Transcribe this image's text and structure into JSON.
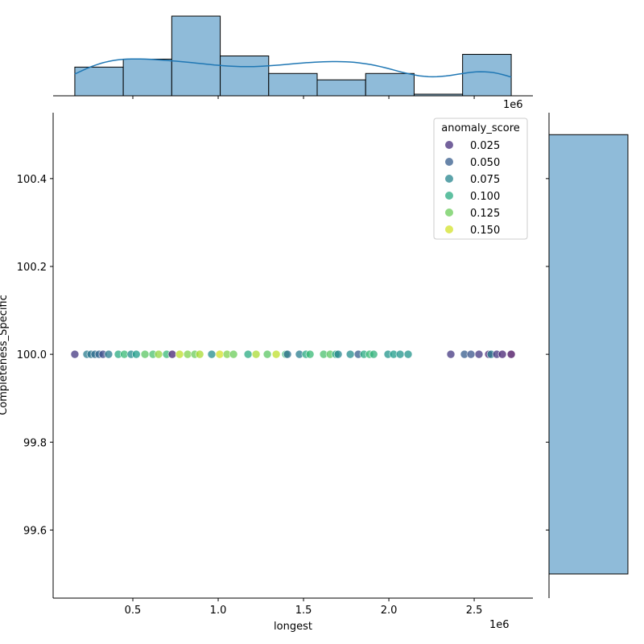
{
  "chart_data": {
    "type": "scatter",
    "subtype": "jointplot",
    "xlabel": "longest",
    "ylabel": "Completeness_Specific",
    "x_offset_label": "1e6",
    "xlim": [
      33000.0,
      2844000.0
    ],
    "ylim": [
      99.445,
      100.55
    ],
    "xticks": [
      0.5,
      1.0,
      1.5,
      2.0,
      2.5
    ],
    "xtick_labels": [
      "0.5",
      "1.0",
      "1.5",
      "2.0",
      "2.5"
    ],
    "yticks": [
      99.6,
      99.8,
      100.0,
      100.2,
      100.4
    ],
    "ytick_labels": [
      "99.6",
      "99.8",
      "100.0",
      "100.2",
      "100.4"
    ],
    "legend": {
      "title": "anomaly_score",
      "placement": "upper right",
      "entries": [
        "0.025",
        "0.050",
        "0.075",
        "0.100",
        "0.125",
        "0.150"
      ],
      "values": [
        0.025,
        0.05,
        0.075,
        0.1,
        0.125,
        0.15
      ]
    },
    "hue_range": [
      0.005,
      0.16
    ],
    "colormap": "viridis",
    "points": [
      [
        160000,
        0.03
      ],
      [
        231000,
        0.07
      ],
      [
        255000,
        0.065
      ],
      [
        278000,
        0.06
      ],
      [
        302000,
        0.055
      ],
      [
        325000,
        0.04
      ],
      [
        358000,
        0.07
      ],
      [
        415000,
        0.1
      ],
      [
        450000,
        0.11
      ],
      [
        490000,
        0.08
      ],
      [
        520000,
        0.09
      ],
      [
        571000,
        0.12
      ],
      [
        618000,
        0.115
      ],
      [
        651000,
        0.135
      ],
      [
        698000,
        0.11
      ],
      [
        731000,
        0.02
      ],
      [
        774000,
        0.145
      ],
      [
        821000,
        0.13
      ],
      [
        863000,
        0.125
      ],
      [
        892000,
        0.14
      ],
      [
        962000,
        0.08
      ],
      [
        1009000,
        0.15
      ],
      [
        1052000,
        0.13
      ],
      [
        1090000,
        0.125
      ],
      [
        1175000,
        0.1
      ],
      [
        1222000,
        0.14
      ],
      [
        1288000,
        0.12
      ],
      [
        1340000,
        0.145
      ],
      [
        1396000,
        0.11
      ],
      [
        1406000,
        0.06
      ],
      [
        1476000,
        0.07
      ],
      [
        1514000,
        0.1
      ],
      [
        1538000,
        0.11
      ],
      [
        1618000,
        0.115
      ],
      [
        1656000,
        0.12
      ],
      [
        1689000,
        0.1
      ],
      [
        1703000,
        0.075
      ],
      [
        1774000,
        0.08
      ],
      [
        1821000,
        0.05
      ],
      [
        1854000,
        0.1
      ],
      [
        1887000,
        0.11
      ],
      [
        1911000,
        0.105
      ],
      [
        1995000,
        0.085
      ],
      [
        2028000,
        0.09
      ],
      [
        2066000,
        0.085
      ],
      [
        2113000,
        0.085
      ],
      [
        2363000,
        0.03
      ],
      [
        2443000,
        0.05
      ],
      [
        2481000,
        0.045
      ],
      [
        2528000,
        0.03
      ],
      [
        2585000,
        0.02
      ],
      [
        2599000,
        0.07
      ],
      [
        2632000,
        0.03
      ],
      [
        2665000,
        0.02
      ],
      [
        2717000,
        0.01
      ]
    ],
    "x_histogram": {
      "bin_edges": [
        160000,
        444000,
        728000,
        1012000,
        1296000,
        1580000,
        1864000,
        2148000,
        2432000,
        2717000
      ],
      "counts": [
        18,
        23,
        50,
        25,
        14,
        10,
        14,
        1,
        26
      ],
      "kde": true
    },
    "y_histogram": {
      "bin_edges": [
        99.5,
        100.5
      ],
      "counts": [
        181
      ]
    },
    "colors": {
      "hist": "#8fbbd9",
      "kde": "#1f77b4"
    }
  }
}
